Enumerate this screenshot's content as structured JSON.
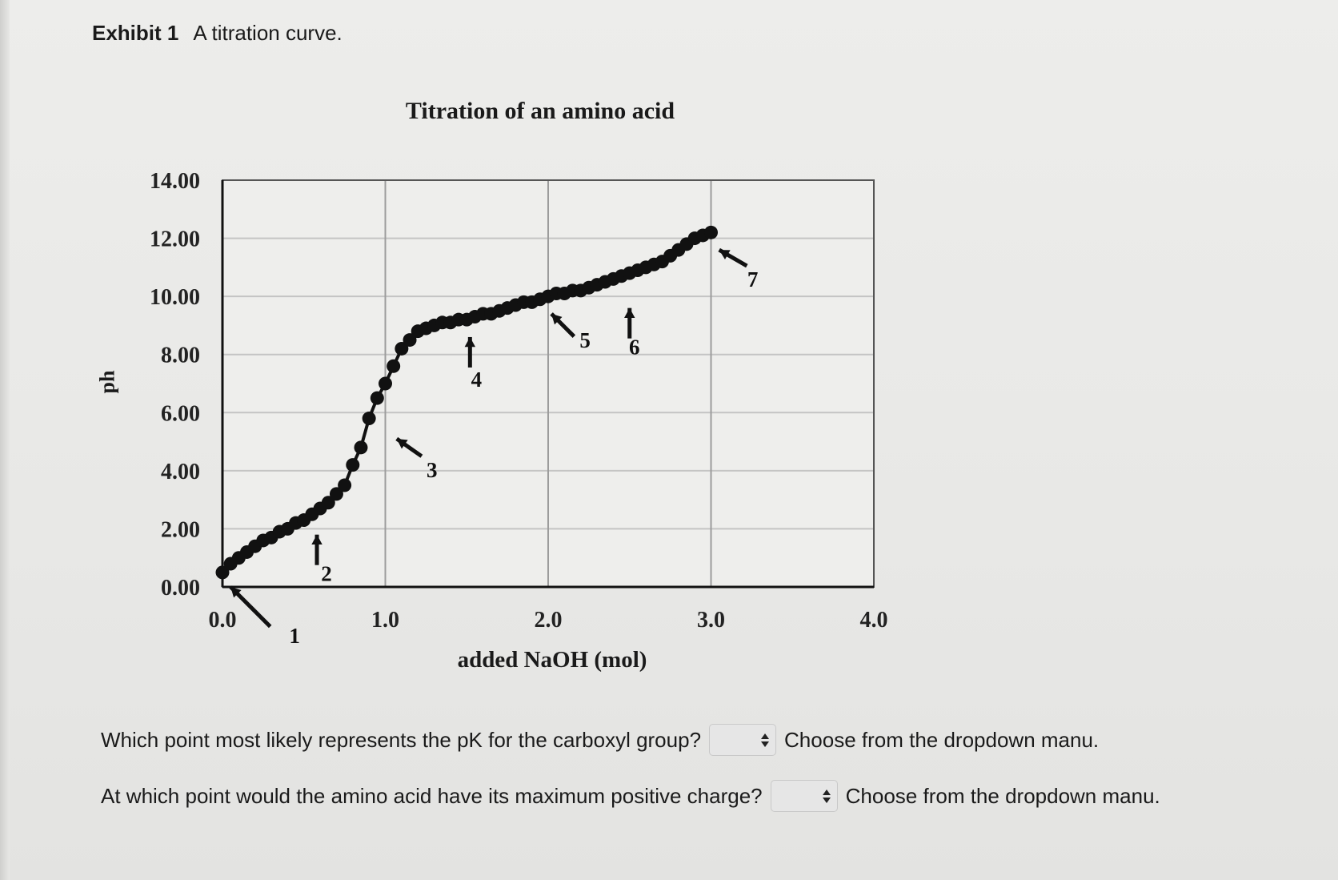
{
  "exhibit": {
    "label": "Exhibit 1",
    "caption": "A titration curve."
  },
  "chart_data": {
    "type": "scatter",
    "title": "Titration of an amino acid",
    "xlabel": "added NaOH (mol)",
    "ylabel": "ph",
    "xlim": [
      0,
      4
    ],
    "ylim": [
      0,
      14
    ],
    "x_ticks": [
      "0.0",
      "1.0",
      "2.0",
      "3.0",
      "4.0"
    ],
    "y_ticks": [
      "0.00",
      "2.00",
      "4.00",
      "6.00",
      "8.00",
      "10.00",
      "12.00",
      "14.00"
    ],
    "grid": true,
    "series": [
      {
        "x": [
          0.0,
          0.05,
          0.1,
          0.15,
          0.2,
          0.25,
          0.3,
          0.35,
          0.4,
          0.45,
          0.5,
          0.55,
          0.6,
          0.65,
          0.7,
          0.75,
          0.8,
          0.85,
          0.9,
          0.95,
          1.0,
          1.05,
          1.1,
          1.15,
          1.2,
          1.25,
          1.3,
          1.35,
          1.4,
          1.45,
          1.5,
          1.55,
          1.6,
          1.65,
          1.7,
          1.75,
          1.8,
          1.85,
          1.9,
          1.95,
          2.0,
          2.05,
          2.1,
          2.15,
          2.2,
          2.25,
          2.3,
          2.35,
          2.4,
          2.45,
          2.5,
          2.55,
          2.6,
          2.65,
          2.7,
          2.75,
          2.8,
          2.85,
          2.9,
          2.95,
          3.0
        ],
        "y": [
          0.5,
          0.8,
          1.0,
          1.2,
          1.4,
          1.6,
          1.7,
          1.9,
          2.0,
          2.2,
          2.3,
          2.5,
          2.7,
          2.9,
          3.2,
          3.5,
          4.2,
          4.8,
          5.8,
          6.5,
          7.0,
          7.6,
          8.2,
          8.5,
          8.8,
          8.9,
          9.0,
          9.1,
          9.1,
          9.2,
          9.2,
          9.3,
          9.4,
          9.4,
          9.5,
          9.6,
          9.7,
          9.8,
          9.8,
          9.9,
          10.0,
          10.1,
          10.1,
          10.2,
          10.2,
          10.3,
          10.4,
          10.5,
          10.6,
          10.7,
          10.8,
          10.9,
          11.0,
          11.1,
          11.2,
          11.4,
          11.6,
          11.8,
          12.0,
          12.1,
          12.2
        ]
      }
    ],
    "annotations": [
      {
        "label": "1",
        "x": 0.05,
        "y": 0.0
      },
      {
        "label": "2",
        "x": 0.58,
        "y": 1.8
      },
      {
        "label": "3",
        "x": 1.07,
        "y": 5.1
      },
      {
        "label": "4",
        "x": 1.52,
        "y": 8.6
      },
      {
        "label": "5",
        "x": 2.02,
        "y": 9.4
      },
      {
        "label": "6",
        "x": 2.5,
        "y": 9.6
      },
      {
        "label": "7",
        "x": 3.05,
        "y": 11.6
      }
    ]
  },
  "questions": [
    {
      "text": "Which point most likely represents the pK for the carboxyl group?",
      "hint": "Choose from the dropdown manu."
    },
    {
      "text": "At which point would the amino acid have its maximum positive charge?",
      "hint": "Choose from the dropdown manu."
    }
  ]
}
